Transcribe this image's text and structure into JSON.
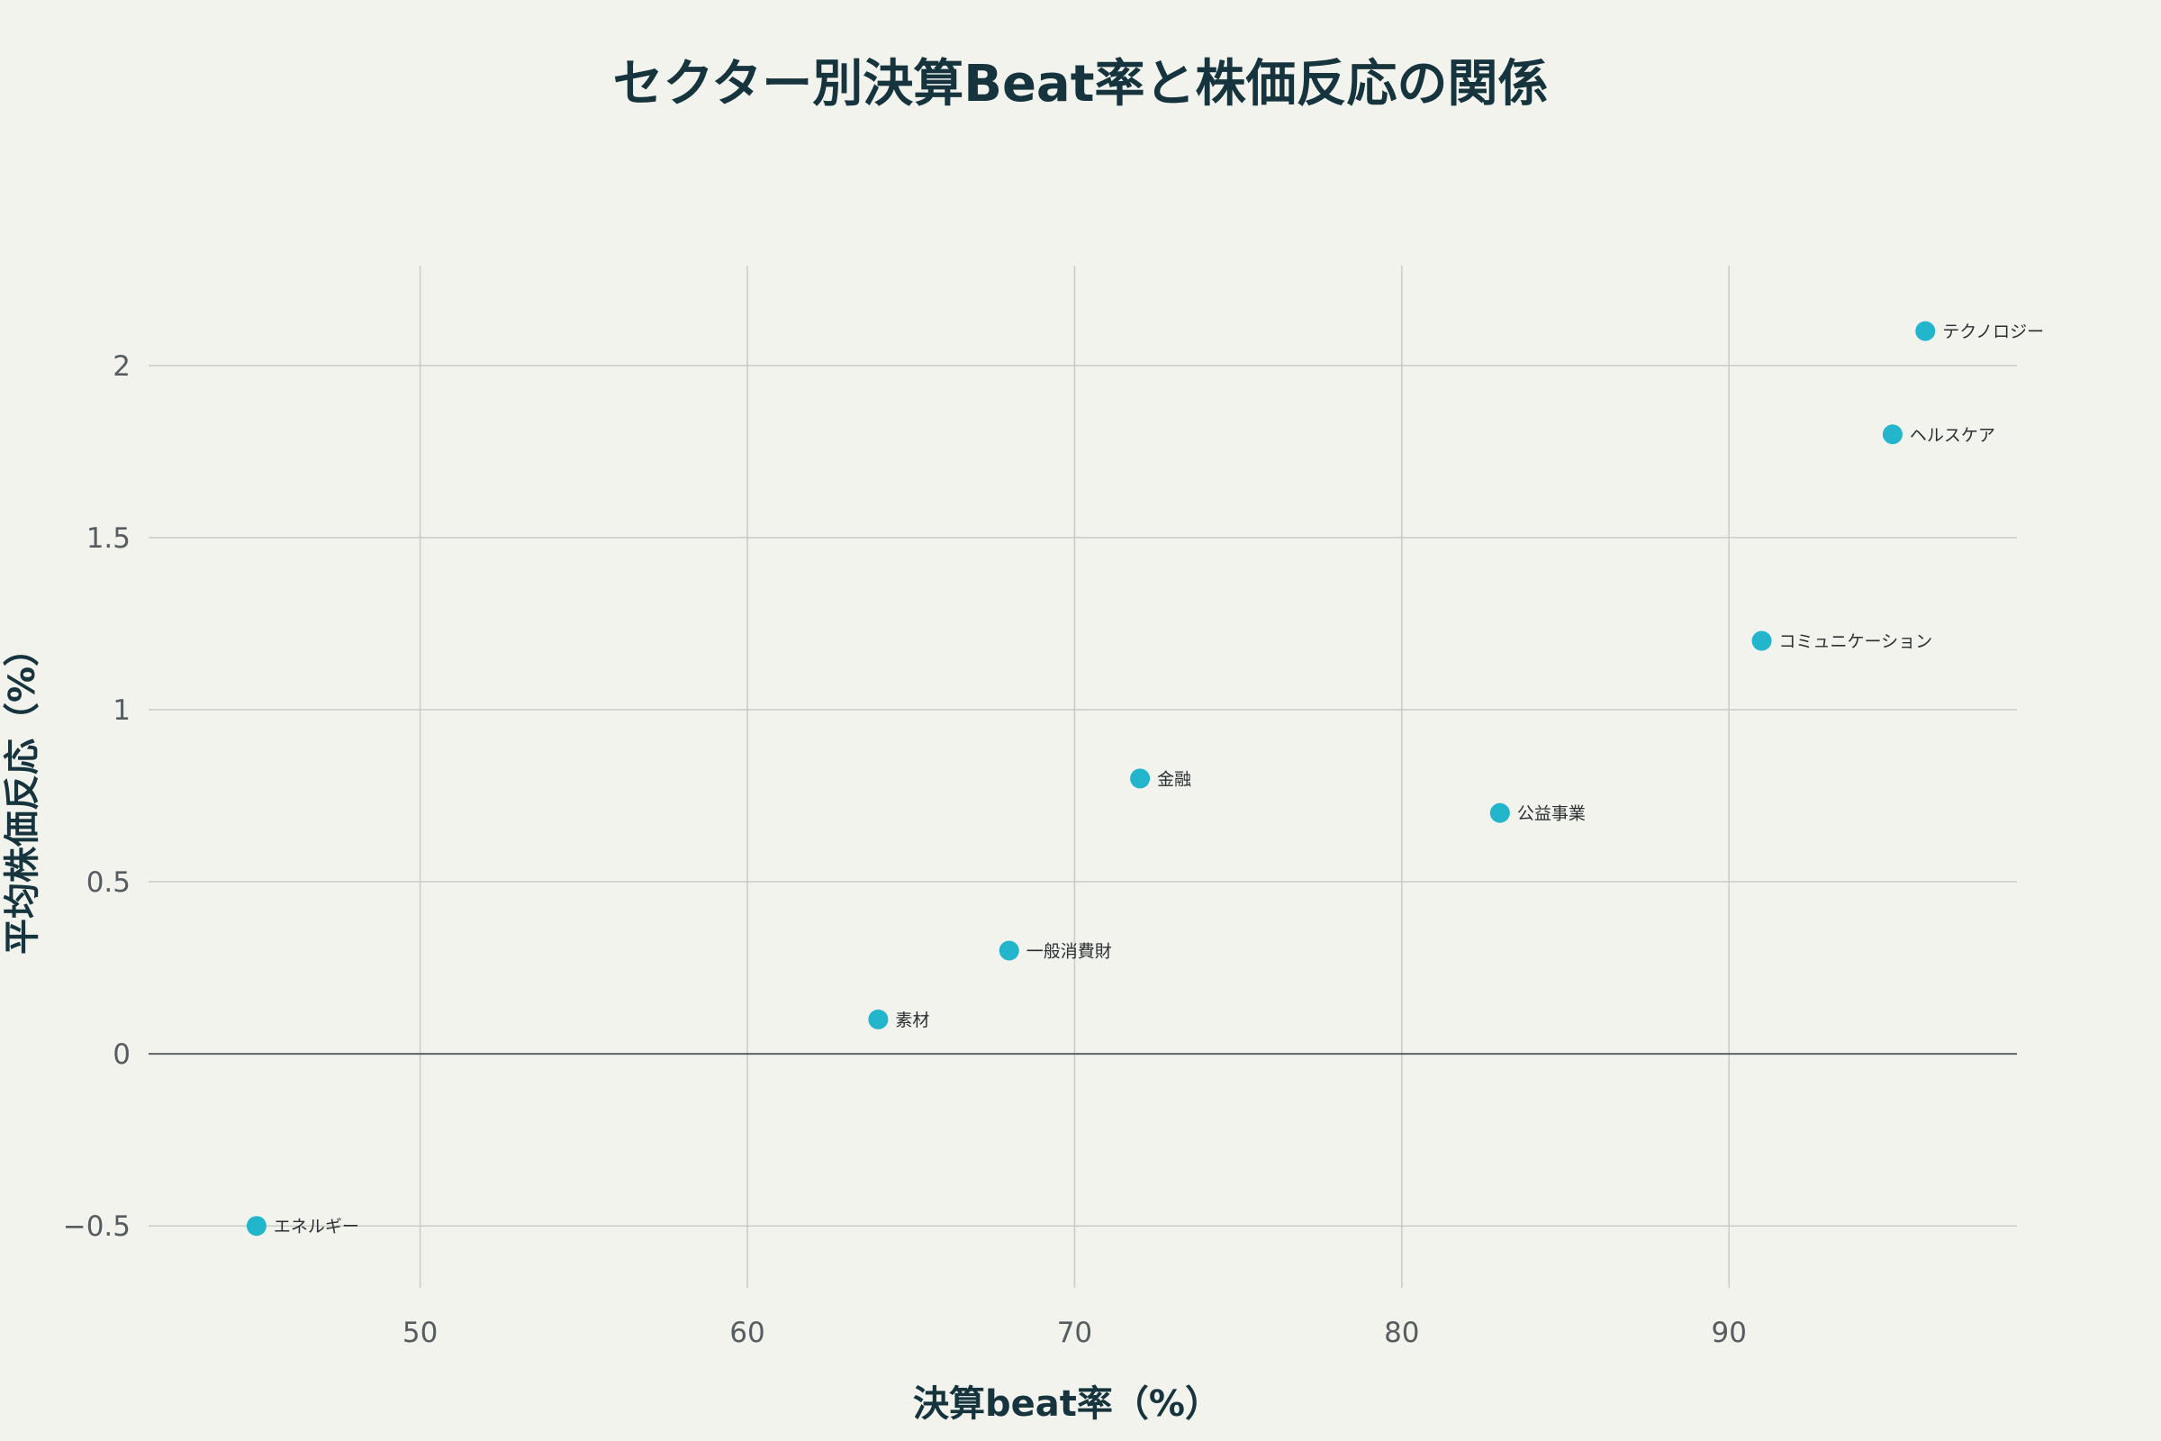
{
  "chart_data": {
    "type": "scatter",
    "title": "セクター別決算Beat率と株価反応の関係",
    "xlabel": "決算beat率（%）",
    "ylabel": "平均株価反応（%）",
    "xlim": [
      41.7,
      98.8
    ],
    "ylim": [
      -0.68,
      2.29
    ],
    "xticks": [
      50,
      60,
      70,
      80,
      90
    ],
    "yticks": [
      -0.5,
      0,
      0.5,
      1,
      1.5,
      2
    ],
    "ytick_labels": [
      "−0.5",
      "0",
      "0.5",
      "1",
      "1.5",
      "2"
    ],
    "grid": true,
    "zero_line": true,
    "marker_color": "#22b5cc",
    "points": [
      {
        "label": "テクノロジー",
        "x": 96,
        "y": 2.1
      },
      {
        "label": "ヘルスケア",
        "x": 95,
        "y": 1.8
      },
      {
        "label": "コミュニケーション",
        "x": 91,
        "y": 1.2
      },
      {
        "label": "金融",
        "x": 72,
        "y": 0.8
      },
      {
        "label": "公益事業",
        "x": 83,
        "y": 0.7
      },
      {
        "label": "一般消費財",
        "x": 68,
        "y": 0.3
      },
      {
        "label": "素材",
        "x": 64,
        "y": 0.1
      },
      {
        "label": "エネルギー",
        "x": 45,
        "y": -0.5
      }
    ]
  }
}
